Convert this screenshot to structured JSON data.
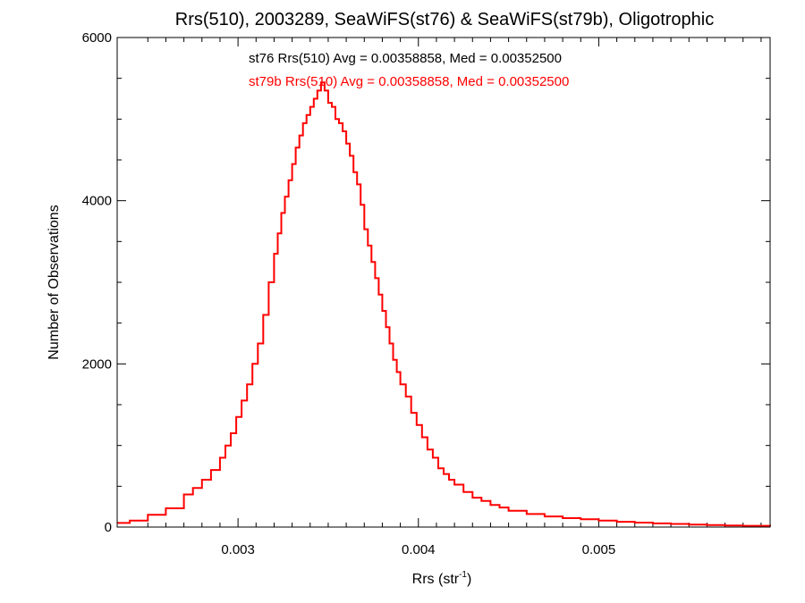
{
  "chart_data": {
    "type": "line",
    "title": "Rrs(510), 2003289, SeaWiFS(st76) & SeaWiFS(st79b), Oligotrophic",
    "xlabel": {
      "base": "Rrs (str",
      "sup": "-1",
      "tail": ")"
    },
    "ylabel": "Number of Observations",
    "xlim": [
      0.00233,
      0.00595
    ],
    "ylim": [
      0,
      6000
    ],
    "xticks": [
      {
        "value": 0.003,
        "label": "0.003"
      },
      {
        "value": 0.004,
        "label": "0.004"
      },
      {
        "value": 0.005,
        "label": "0.005"
      }
    ],
    "yticks": [
      {
        "value": 0,
        "label": "0"
      },
      {
        "value": 2000,
        "label": "2000"
      },
      {
        "value": 4000,
        "label": "4000"
      },
      {
        "value": 6000,
        "label": "6000"
      }
    ],
    "annotations": [
      {
        "text": "st76 Rrs(510) Avg = 0.00358858, Med = 0.00352500",
        "color": "#000000"
      },
      {
        "text": "st79b Rrs(510) Avg = 0.00358858, Med = 0.00352500",
        "color": "#ff0000"
      }
    ],
    "series": [
      {
        "color": "#ff0000",
        "step": true,
        "x": [
          0.00233,
          0.0024,
          0.0025,
          0.0026,
          0.0027,
          0.00275,
          0.0028,
          0.00285,
          0.0029,
          0.00293,
          0.00296,
          0.00299,
          0.00302,
          0.00305,
          0.00308,
          0.00311,
          0.00314,
          0.00317,
          0.0032,
          0.00322,
          0.00324,
          0.00326,
          0.00328,
          0.0033,
          0.00332,
          0.00334,
          0.00336,
          0.00338,
          0.0034,
          0.00342,
          0.00344,
          0.00346,
          0.00348,
          0.0035,
          0.00352,
          0.00354,
          0.00356,
          0.00358,
          0.0036,
          0.00362,
          0.00364,
          0.00366,
          0.00368,
          0.0037,
          0.00372,
          0.00374,
          0.00376,
          0.00378,
          0.0038,
          0.00382,
          0.00384,
          0.00386,
          0.00388,
          0.0039,
          0.00393,
          0.00396,
          0.00399,
          0.00402,
          0.00405,
          0.00408,
          0.00411,
          0.00414,
          0.00417,
          0.0042,
          0.00425,
          0.0043,
          0.00435,
          0.0044,
          0.00445,
          0.0045,
          0.0046,
          0.0047,
          0.0048,
          0.0049,
          0.005,
          0.0051,
          0.0052,
          0.0053,
          0.0054,
          0.0055,
          0.0056,
          0.0057,
          0.0058,
          0.00595
        ],
        "y": [
          50,
          80,
          150,
          230,
          400,
          480,
          580,
          700,
          850,
          1000,
          1150,
          1350,
          1550,
          1750,
          2000,
          2250,
          2600,
          3000,
          3350,
          3600,
          3850,
          4050,
          4250,
          4450,
          4650,
          4800,
          4950,
          5050,
          5150,
          5250,
          5350,
          5450,
          5350,
          5200,
          5150,
          5000,
          4950,
          4850,
          4700,
          4550,
          4350,
          4200,
          3950,
          3650,
          3450,
          3250,
          3050,
          2850,
          2650,
          2450,
          2250,
          2050,
          1900,
          1750,
          1600,
          1400,
          1250,
          1100,
          950,
          850,
          720,
          650,
          580,
          520,
          430,
          360,
          320,
          270,
          240,
          200,
          160,
          130,
          110,
          95,
          80,
          65,
          55,
          45,
          38,
          30,
          25,
          20,
          15,
          10
        ]
      }
    ]
  }
}
